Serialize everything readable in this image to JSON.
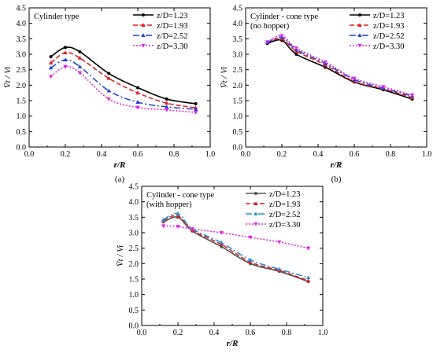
{
  "chart_data": [
    {
      "type": "line",
      "panel_label": "(a)",
      "annotation": [
        "Cylinder type"
      ],
      "xlabel": "r/R",
      "ylabel": "V̄t / Vi",
      "xlim": [
        0.0,
        1.0
      ],
      "ylim": [
        0.0,
        4.5
      ],
      "xticks": [
        "0.0",
        "0.2",
        "0.4",
        "0.6",
        "0.8",
        "1.0"
      ],
      "yticks": [
        "0.0",
        "0.5",
        "1.0",
        "1.5",
        "2.0",
        "2.5",
        "3.0",
        "3.5",
        "4.0",
        "4.5"
      ],
      "legend_position": "top-right",
      "grid": false,
      "x": [
        0.12,
        0.2,
        0.28,
        0.44,
        0.6,
        0.76,
        0.92
      ],
      "series": [
        {
          "name": "z/D=1.23",
          "color": "#000000",
          "values": [
            2.92,
            3.22,
            3.08,
            2.38,
            1.92,
            1.55,
            1.4
          ]
        },
        {
          "name": "z/D=1.93",
          "color": "#e41a1c",
          "values": [
            2.72,
            3.05,
            2.88,
            2.22,
            1.75,
            1.42,
            1.27
          ]
        },
        {
          "name": "z/D=2.52",
          "color": "#1f3fd6",
          "values": [
            2.56,
            2.82,
            2.6,
            1.82,
            1.45,
            1.3,
            1.22
          ]
        },
        {
          "name": "z/D=3.30",
          "color": "#e020e0",
          "values": [
            2.28,
            2.6,
            2.4,
            1.55,
            1.28,
            1.2,
            1.12
          ]
        }
      ]
    },
    {
      "type": "line",
      "panel_label": "(b)",
      "annotation": [
        "Cylinder - cone type",
        "(no hopper)"
      ],
      "xlabel": "r/R",
      "ylabel": "V̄t / Vi",
      "xlim": [
        0.0,
        1.0
      ],
      "ylim": [
        0.0,
        4.5
      ],
      "xticks": [
        "0.0",
        "0.2",
        "0.4",
        "0.6",
        "0.8",
        "1.0"
      ],
      "yticks": [
        "0.0",
        "0.5",
        "1.0",
        "1.5",
        "2.0",
        "2.5",
        "3.0",
        "3.5",
        "4.0",
        "4.5"
      ],
      "legend_position": "top-right",
      "grid": false,
      "x": [
        0.12,
        0.2,
        0.28,
        0.44,
        0.6,
        0.76,
        0.92
      ],
      "series": [
        {
          "name": "z/D=1.23",
          "color": "#000000",
          "values": [
            3.35,
            3.45,
            3.0,
            2.58,
            2.1,
            1.85,
            1.55
          ]
        },
        {
          "name": "z/D=1.93",
          "color": "#e41a1c",
          "values": [
            3.38,
            3.5,
            3.1,
            2.65,
            2.12,
            1.88,
            1.6
          ]
        },
        {
          "name": "z/D=2.52",
          "color": "#1f3fd6",
          "values": [
            3.38,
            3.55,
            3.15,
            2.7,
            2.18,
            1.9,
            1.65
          ]
        },
        {
          "name": "z/D=3.30",
          "color": "#e020e0",
          "values": [
            3.4,
            3.6,
            3.2,
            2.75,
            2.22,
            1.95,
            1.68
          ]
        }
      ]
    },
    {
      "type": "line",
      "panel_label": "(c)",
      "annotation": [
        "Cylinder - cone type",
        "(with hopper)"
      ],
      "xlabel": "r/R",
      "ylabel": "V̄t / Vi",
      "xlim": [
        0.0,
        1.0
      ],
      "ylim": [
        0.0,
        4.5
      ],
      "xticks": [
        "0.0",
        "0.2",
        "0.4",
        "0.6",
        "0.8",
        "1.0"
      ],
      "yticks": [
        "0.0",
        "0.5",
        "1.0",
        "1.5",
        "2.0",
        "2.5",
        "3.0",
        "3.5",
        "4.0",
        "4.5"
      ],
      "legend_position": "top-right",
      "grid": false,
      "x": [
        0.12,
        0.2,
        0.28,
        0.44,
        0.6,
        0.76,
        0.92
      ],
      "series": [
        {
          "name": "z/D=1.23",
          "color": "#555555",
          "values": [
            3.35,
            3.5,
            3.05,
            2.55,
            2.0,
            1.75,
            1.42
          ]
        },
        {
          "name": "z/D=1.93",
          "color": "#e41a1c",
          "values": [
            3.4,
            3.55,
            3.08,
            2.62,
            2.05,
            1.78,
            1.45
          ]
        },
        {
          "name": "z/D=2.52",
          "color": "#1f8fd6",
          "values": [
            3.42,
            3.62,
            3.12,
            2.68,
            2.12,
            1.82,
            1.55
          ]
        },
        {
          "name": "z/D=3.30",
          "color": "#e020e0",
          "values": [
            3.22,
            3.2,
            3.12,
            3.0,
            2.85,
            2.7,
            2.5
          ]
        }
      ]
    }
  ]
}
